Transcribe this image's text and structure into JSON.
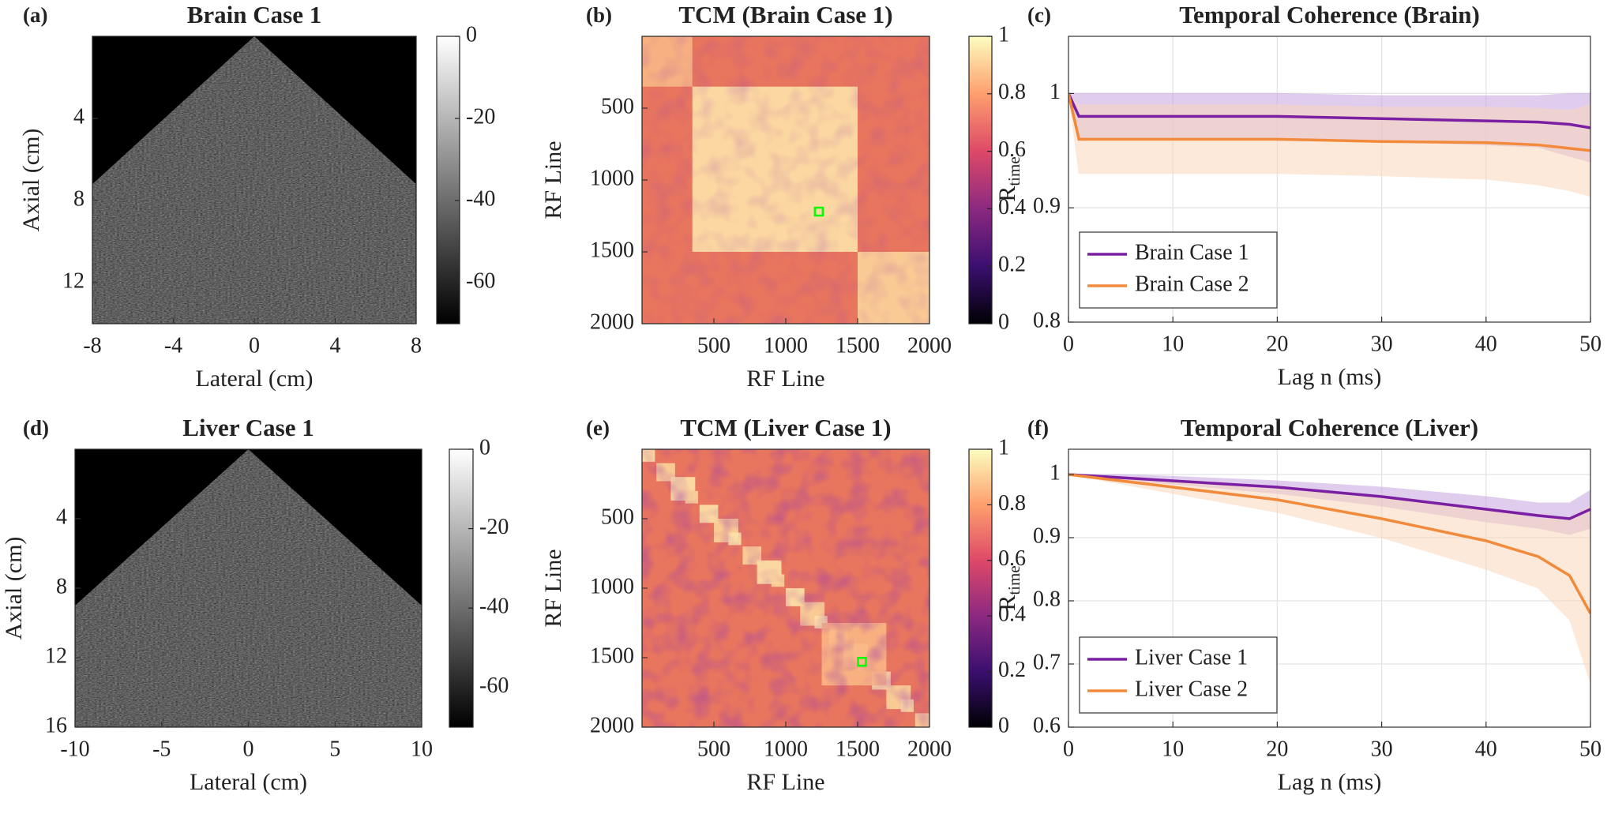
{
  "chart_data": [
    {
      "type": "image",
      "label": "(a)",
      "title": "Brain Case 1",
      "xlabel": "Lateral (cm)",
      "ylabel": "Axial (cm)",
      "xlim": [
        -8,
        8
      ],
      "xticks": [
        -8,
        -4,
        0,
        4,
        8
      ],
      "ylim": [
        0,
        14
      ],
      "yticks": [
        4,
        8,
        12
      ],
      "colormap": "gray",
      "clim": [
        -70,
        0
      ],
      "cticks": [
        0,
        -20,
        -40,
        -60
      ]
    },
    {
      "type": "heatmap",
      "label": "(b)",
      "title": "TCM (Brain Case 1)",
      "xlabel": "RF Line",
      "ylabel": "RF Line",
      "xlim": [
        0,
        2000
      ],
      "xticks": [
        500,
        1000,
        1500,
        2000
      ],
      "ylim": [
        0,
        2000
      ],
      "yticks": [
        500,
        1000,
        1500,
        2000
      ],
      "colormap": "magma",
      "clim": [
        0,
        1
      ],
      "cticks": [
        0,
        0.2,
        0.4,
        0.6,
        0.8,
        1
      ],
      "marker": {
        "x": 1230,
        "y": 1220,
        "color": "#00ff00"
      }
    },
    {
      "type": "line",
      "label": "(c)",
      "title": "Temporal Coherence (Brain)",
      "xlabel": "Lag n (ms)",
      "ylabel": {
        "text": "R",
        "sub": "time"
      },
      "xlim": [
        0,
        50
      ],
      "xticks": [
        0,
        10,
        20,
        30,
        40,
        50
      ],
      "ylim": [
        0.8,
        1.05
      ],
      "yticks": [
        0.8,
        0.9,
        1
      ],
      "grid": true,
      "legend": "lower-left",
      "x": [
        0,
        1,
        5,
        10,
        20,
        30,
        40,
        45,
        48,
        50
      ],
      "series": [
        {
          "name": "Brain Case 1",
          "color": "#7b1fa2",
          "band_color": "#c7a4e0",
          "values": [
            1,
            0.98,
            0.98,
            0.98,
            0.98,
            0.978,
            0.976,
            0.975,
            0.973,
            0.97
          ],
          "lower": [
            1,
            0.96,
            0.96,
            0.96,
            0.96,
            0.958,
            0.955,
            0.953,
            0.945,
            0.94
          ],
          "upper": [
            1,
            1,
            1,
            1,
            1,
            0.998,
            0.998,
            0.998,
            1,
            1
          ]
        },
        {
          "name": "Brain Case 2",
          "color": "#f28a3c",
          "band_color": "#fbd8bd",
          "values": [
            1,
            0.96,
            0.96,
            0.96,
            0.96,
            0.958,
            0.957,
            0.955,
            0.952,
            0.95
          ],
          "lower": [
            1,
            0.93,
            0.93,
            0.93,
            0.93,
            0.928,
            0.925,
            0.92,
            0.915,
            0.91
          ],
          "upper": [
            1,
            0.99,
            0.99,
            0.99,
            0.99,
            0.988,
            0.988,
            0.987,
            0.985,
            0.99
          ]
        }
      ]
    },
    {
      "type": "image",
      "label": "(d)",
      "title": "Liver Case 1",
      "xlabel": "Lateral (cm)",
      "ylabel": "Axial (cm)",
      "xlim": [
        -10,
        10
      ],
      "xticks": [
        -10,
        -5,
        0,
        5,
        10
      ],
      "ylim": [
        0,
        16
      ],
      "yticks": [
        4,
        8,
        12,
        16
      ],
      "colormap": "gray",
      "clim": [
        -70,
        0
      ],
      "cticks": [
        0,
        -20,
        -40,
        -60
      ]
    },
    {
      "type": "heatmap",
      "label": "(e)",
      "title": "TCM (Liver Case 1)",
      "xlabel": "RF Line",
      "ylabel": "RF Line",
      "xlim": [
        0,
        2000
      ],
      "xticks": [
        500,
        1000,
        1500,
        2000
      ],
      "ylim": [
        0,
        2000
      ],
      "yticks": [
        500,
        1000,
        1500,
        2000
      ],
      "colormap": "magma",
      "clim": [
        0,
        1
      ],
      "cticks": [
        0,
        0.2,
        0.4,
        0.6,
        0.8,
        1
      ],
      "marker": {
        "x": 1530,
        "y": 1530,
        "color": "#00ff00"
      }
    },
    {
      "type": "line",
      "label": "(f)",
      "title": "Temporal Coherence (Liver)",
      "xlabel": "Lag n (ms)",
      "ylabel": {
        "text": "R",
        "sub": "time"
      },
      "xlim": [
        0,
        50
      ],
      "xticks": [
        0,
        10,
        20,
        30,
        40,
        50
      ],
      "ylim": [
        0.6,
        1.04
      ],
      "yticks": [
        0.6,
        0.7,
        0.8,
        0.9,
        1
      ],
      "grid": true,
      "legend": "lower-left",
      "x": [
        0,
        5,
        10,
        20,
        30,
        40,
        45,
        48,
        50
      ],
      "series": [
        {
          "name": "Liver Case 1",
          "color": "#7b1fa2",
          "band_color": "#c7a4e0",
          "values": [
            1,
            0.995,
            0.99,
            0.98,
            0.965,
            0.945,
            0.935,
            0.93,
            0.945
          ],
          "lower": [
            1,
            0.99,
            0.985,
            0.97,
            0.95,
            0.925,
            0.915,
            0.905,
            0.915
          ],
          "upper": [
            1,
            1,
            0.997,
            0.99,
            0.98,
            0.965,
            0.955,
            0.955,
            0.975
          ]
        },
        {
          "name": "Liver Case 2",
          "color": "#f28a3c",
          "band_color": "#fbd8bd",
          "values": [
            1,
            0.99,
            0.98,
            0.96,
            0.93,
            0.895,
            0.87,
            0.84,
            0.78
          ],
          "lower": [
            1,
            0.985,
            0.97,
            0.94,
            0.9,
            0.85,
            0.82,
            0.77,
            0.67
          ],
          "upper": [
            1,
            0.995,
            0.99,
            0.98,
            0.965,
            0.945,
            0.93,
            0.93,
            0.95
          ]
        }
      ]
    }
  ]
}
